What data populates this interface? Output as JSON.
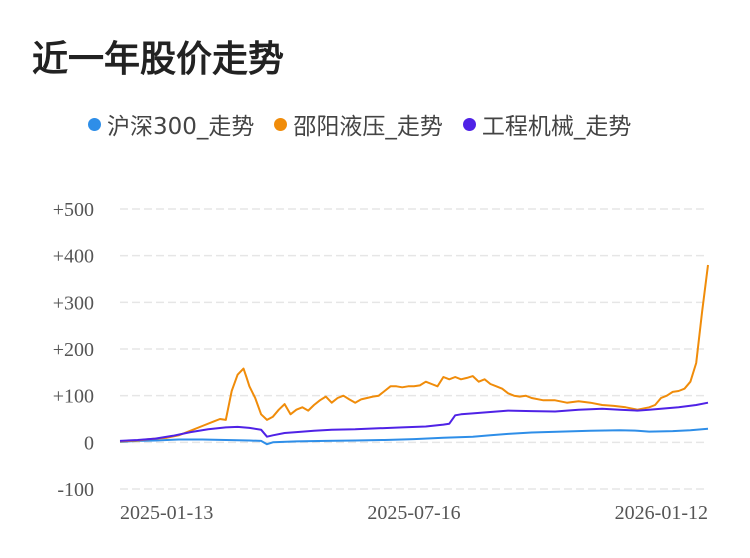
{
  "title": "近一年股价走势",
  "chart_data": {
    "type": "line",
    "title": "近一年股价走势",
    "xlabel": "",
    "ylabel": "",
    "yticks": [
      "+500",
      "+400",
      "+300",
      "+200",
      "+100",
      "0",
      "-100"
    ],
    "ytick_values": [
      500,
      400,
      300,
      200,
      100,
      0,
      -100
    ],
    "ylim": [
      -100,
      500
    ],
    "xticks": [
      "2025-01-13",
      "2025-07-16",
      "2026-01-12"
    ],
    "xtick_positions": [
      0,
      0.5,
      1
    ],
    "grid": true,
    "legend_position": "top",
    "series": [
      {
        "name": "沪深300_走势",
        "color": "#2e8ee8",
        "points": [
          [
            0,
            1
          ],
          [
            0.03,
            3
          ],
          [
            0.06,
            4
          ],
          [
            0.1,
            6
          ],
          [
            0.14,
            6
          ],
          [
            0.18,
            5
          ],
          [
            0.22,
            4
          ],
          [
            0.24,
            3
          ],
          [
            0.25,
            -4
          ],
          [
            0.26,
            0
          ],
          [
            0.3,
            2
          ],
          [
            0.35,
            3
          ],
          [
            0.4,
            4
          ],
          [
            0.45,
            5
          ],
          [
            0.5,
            7
          ],
          [
            0.55,
            10
          ],
          [
            0.6,
            12
          ],
          [
            0.63,
            15
          ],
          [
            0.66,
            18
          ],
          [
            0.7,
            21
          ],
          [
            0.75,
            23
          ],
          [
            0.8,
            25
          ],
          [
            0.85,
            26
          ],
          [
            0.88,
            25
          ],
          [
            0.9,
            23
          ],
          [
            0.94,
            24
          ],
          [
            0.97,
            26
          ],
          [
            1,
            29
          ]
        ]
      },
      {
        "name": "邵阳液压_走势",
        "color": "#f08c0a",
        "points": [
          [
            0,
            2
          ],
          [
            0.03,
            4
          ],
          [
            0.05,
            7
          ],
          [
            0.08,
            10
          ],
          [
            0.1,
            15
          ],
          [
            0.12,
            25
          ],
          [
            0.14,
            35
          ],
          [
            0.16,
            45
          ],
          [
            0.17,
            50
          ],
          [
            0.18,
            48
          ],
          [
            0.19,
            110
          ],
          [
            0.2,
            145
          ],
          [
            0.21,
            158
          ],
          [
            0.215,
            140
          ],
          [
            0.22,
            120
          ],
          [
            0.23,
            95
          ],
          [
            0.24,
            60
          ],
          [
            0.25,
            48
          ],
          [
            0.26,
            55
          ],
          [
            0.27,
            70
          ],
          [
            0.28,
            82
          ],
          [
            0.29,
            60
          ],
          [
            0.3,
            70
          ],
          [
            0.31,
            75
          ],
          [
            0.32,
            68
          ],
          [
            0.33,
            80
          ],
          [
            0.34,
            90
          ],
          [
            0.35,
            98
          ],
          [
            0.36,
            85
          ],
          [
            0.37,
            95
          ],
          [
            0.38,
            100
          ],
          [
            0.39,
            92
          ],
          [
            0.4,
            85
          ],
          [
            0.41,
            92
          ],
          [
            0.42,
            95
          ],
          [
            0.43,
            98
          ],
          [
            0.44,
            100
          ],
          [
            0.45,
            110
          ],
          [
            0.46,
            120
          ],
          [
            0.47,
            120
          ],
          [
            0.48,
            118
          ],
          [
            0.49,
            120
          ],
          [
            0.5,
            120
          ],
          [
            0.51,
            122
          ],
          [
            0.52,
            130
          ],
          [
            0.53,
            125
          ],
          [
            0.54,
            120
          ],
          [
            0.55,
            140
          ],
          [
            0.56,
            135
          ],
          [
            0.57,
            140
          ],
          [
            0.58,
            135
          ],
          [
            0.59,
            138
          ],
          [
            0.6,
            142
          ],
          [
            0.61,
            130
          ],
          [
            0.62,
            135
          ],
          [
            0.63,
            125
          ],
          [
            0.64,
            120
          ],
          [
            0.65,
            115
          ],
          [
            0.66,
            105
          ],
          [
            0.67,
            100
          ],
          [
            0.68,
            98
          ],
          [
            0.69,
            100
          ],
          [
            0.7,
            95
          ],
          [
            0.72,
            90
          ],
          [
            0.74,
            90
          ],
          [
            0.76,
            85
          ],
          [
            0.78,
            88
          ],
          [
            0.8,
            85
          ],
          [
            0.82,
            80
          ],
          [
            0.84,
            78
          ],
          [
            0.86,
            75
          ],
          [
            0.88,
            70
          ],
          [
            0.9,
            75
          ],
          [
            0.91,
            80
          ],
          [
            0.92,
            95
          ],
          [
            0.93,
            100
          ],
          [
            0.94,
            108
          ],
          [
            0.95,
            110
          ],
          [
            0.96,
            115
          ],
          [
            0.97,
            130
          ],
          [
            0.98,
            170
          ],
          [
            0.99,
            280
          ],
          [
            1,
            380
          ]
        ]
      },
      {
        "name": "工程机械_走势",
        "color": "#4f22e6",
        "points": [
          [
            0,
            3
          ],
          [
            0.03,
            5
          ],
          [
            0.06,
            8
          ],
          [
            0.09,
            14
          ],
          [
            0.12,
            22
          ],
          [
            0.15,
            28
          ],
          [
            0.18,
            32
          ],
          [
            0.2,
            33
          ],
          [
            0.22,
            31
          ],
          [
            0.24,
            27
          ],
          [
            0.25,
            12
          ],
          [
            0.26,
            15
          ],
          [
            0.28,
            20
          ],
          [
            0.3,
            22
          ],
          [
            0.33,
            25
          ],
          [
            0.36,
            27
          ],
          [
            0.4,
            28
          ],
          [
            0.44,
            30
          ],
          [
            0.48,
            32
          ],
          [
            0.52,
            34
          ],
          [
            0.55,
            38
          ],
          [
            0.56,
            40
          ],
          [
            0.57,
            58
          ],
          [
            0.58,
            60
          ],
          [
            0.6,
            62
          ],
          [
            0.63,
            65
          ],
          [
            0.66,
            68
          ],
          [
            0.7,
            67
          ],
          [
            0.74,
            66
          ],
          [
            0.78,
            70
          ],
          [
            0.82,
            72
          ],
          [
            0.85,
            70
          ],
          [
            0.88,
            68
          ],
          [
            0.9,
            70
          ],
          [
            0.92,
            72
          ],
          [
            0.95,
            75
          ],
          [
            0.98,
            80
          ],
          [
            1,
            85
          ]
        ]
      }
    ]
  }
}
